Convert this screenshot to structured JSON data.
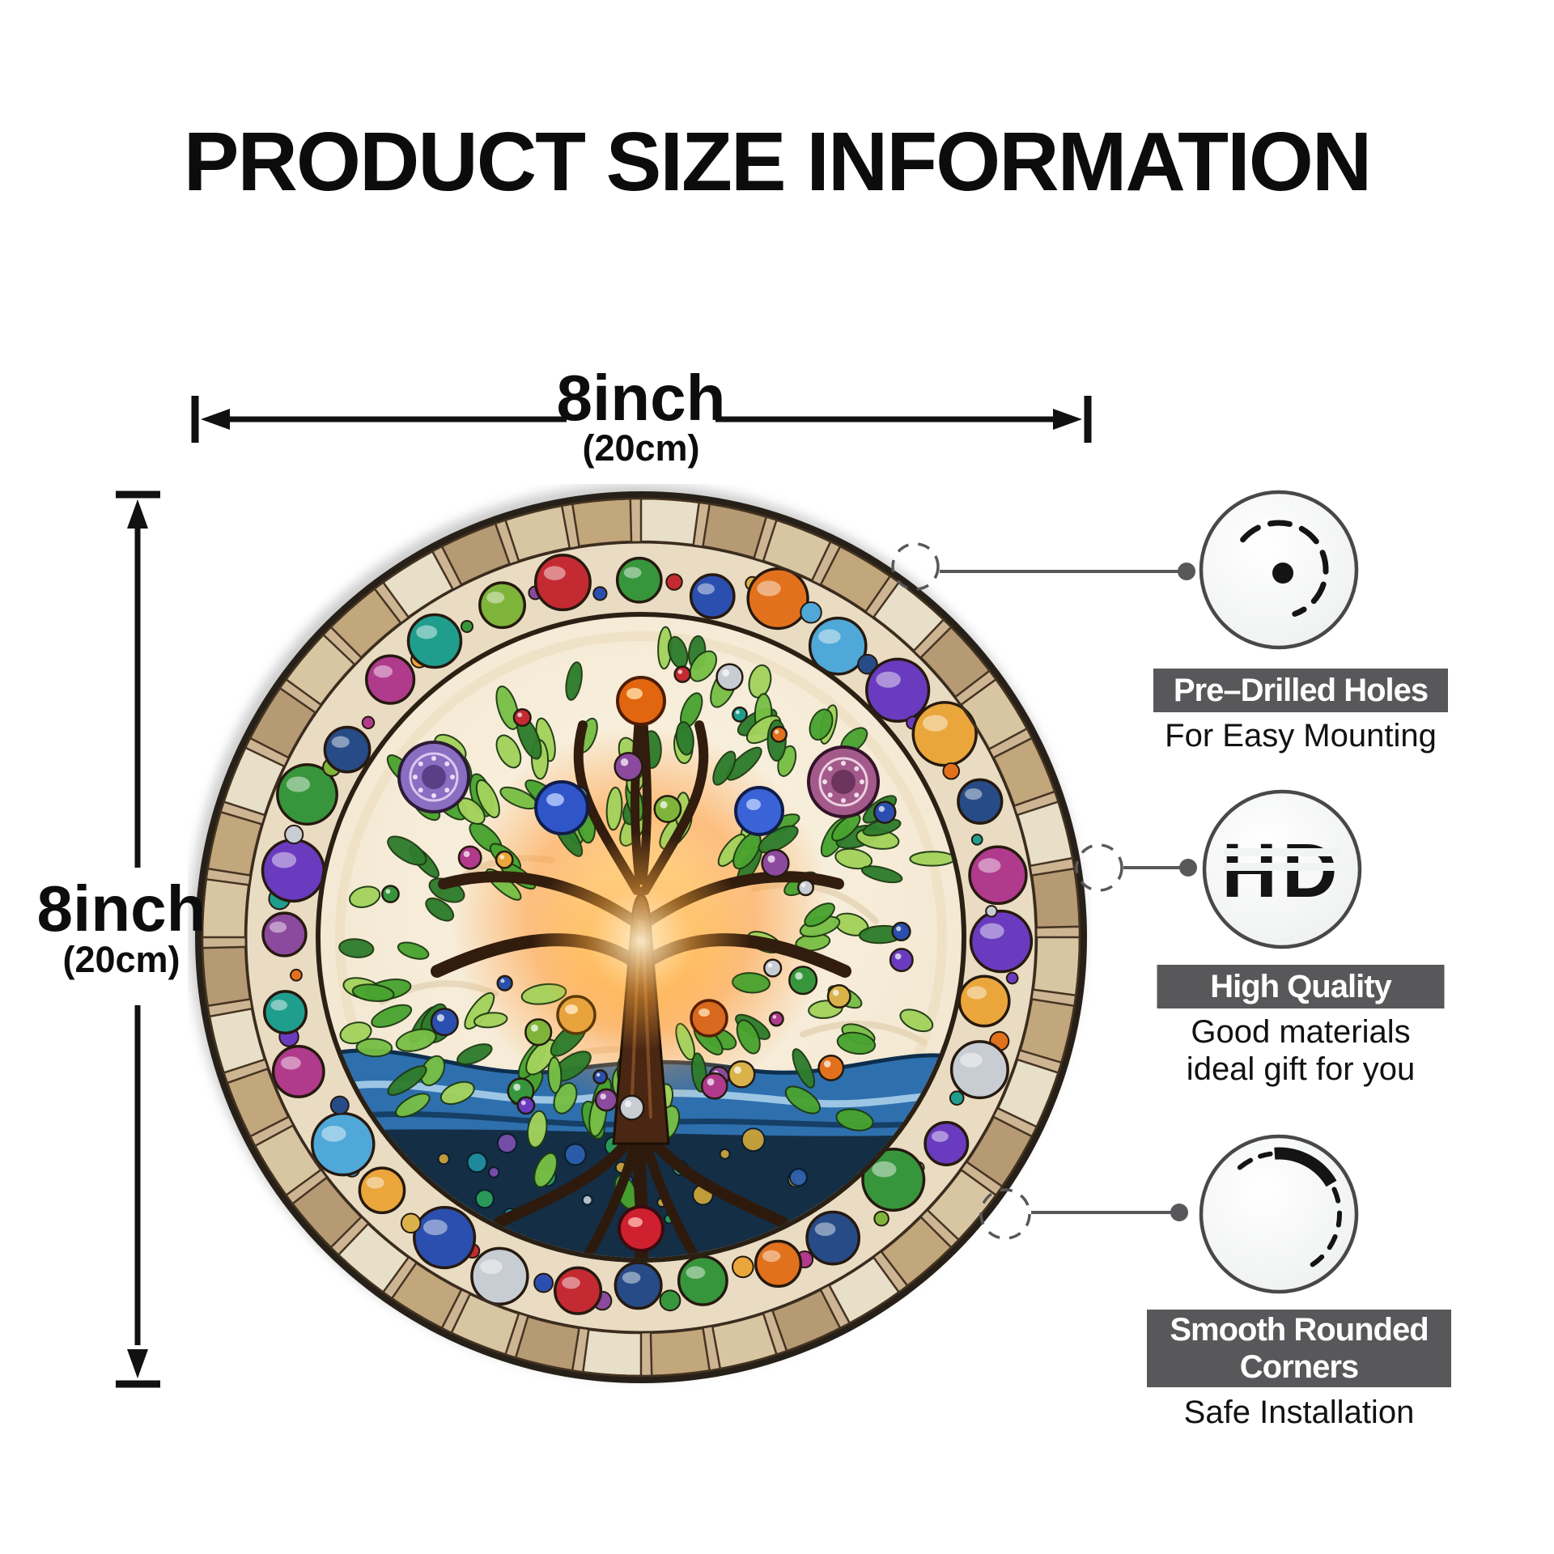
{
  "title": "PRODUCT SIZE INFORMATION",
  "dimension_width": {
    "value": "8inch",
    "metric": "(20cm)"
  },
  "dimension_height": {
    "value": "8inch",
    "metric": "(20cm)"
  },
  "features": [
    {
      "title": "Pre–Drilled Holes",
      "caption": "For Easy Mounting",
      "icon": "drilled-hole-icon"
    },
    {
      "title": "High Quality",
      "caption_line1": "Good materials",
      "caption_line2": "ideal gift for you",
      "icon": "hd-icon",
      "icon_text": "HD"
    },
    {
      "title": "Smooth Rounded Corners",
      "caption": "Safe Installation",
      "icon": "rounded-corner-icon"
    }
  ],
  "colors": {
    "badge_bg": "#58585a",
    "badge_text": "#ffffff",
    "connector_gray": "#58585a",
    "dimension_black": "#111111",
    "panel_rim": "#262019"
  },
  "palette": {
    "tiles": [
      "#d8c6a3",
      "#c2a67c",
      "#e8dfc8",
      "#b59a74"
    ],
    "gems": [
      "#2b4fae",
      "#6a3bbf",
      "#b03a8c",
      "#c42a32",
      "#e2711d",
      "#eaa63b",
      "#d9b24a",
      "#1f9e8e",
      "#37963c",
      "#4fa8d8",
      "#c8cdd4",
      "#8c4a9e",
      "#274b86",
      "#7fb43a"
    ],
    "greens": [
      "#2e7c2c",
      "#49a32f",
      "#77bf45",
      "#a3d25c"
    ],
    "bed": [
      "#1f8fa0",
      "#2b5fae",
      "#3ab08a",
      "#bcc6cc",
      "#caa23a",
      "#7a4fae",
      "#2aa05a"
    ]
  }
}
